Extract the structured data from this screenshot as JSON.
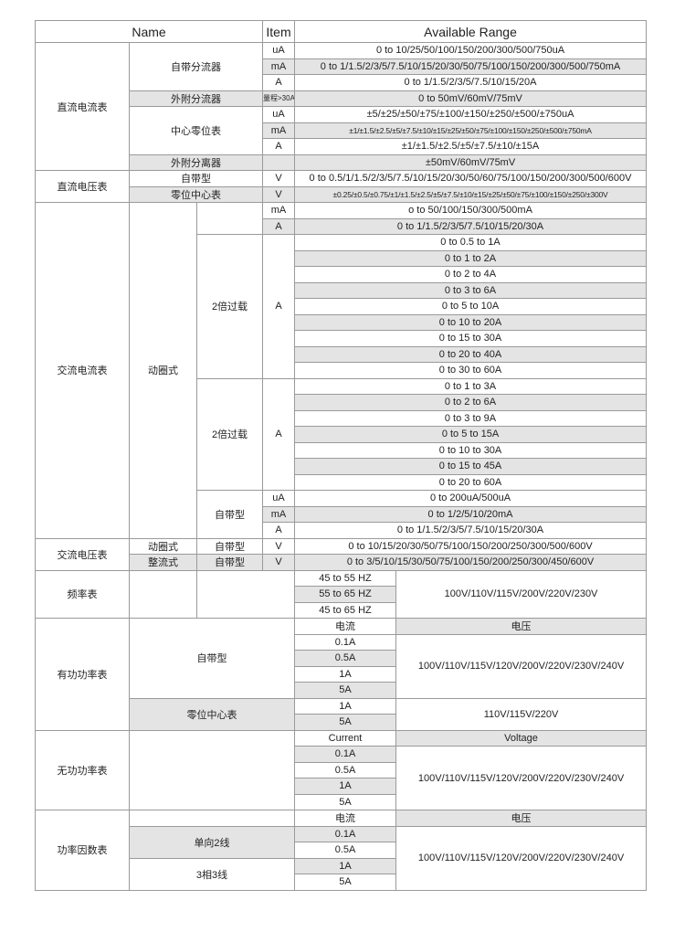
{
  "table": {
    "header": [
      "Name",
      "Item",
      "Available Range"
    ],
    "rows": [
      [
        "直流电流表",
        "自带分流器",
        "uA",
        "0 to 10/25/50/100/150/200/300/500/750uA"
      ],
      [
        "mA",
        "0 to 1/1.5/2/3/5/7.5/10/15/20/30/50/75/100/150/200/300/500/750mA"
      ],
      [
        "A",
        "0 to 1/1.5/2/3/5/7.5/10/15/20A"
      ],
      [
        "外附分流器",
        "量程>30A",
        "0 to 50mV/60mV/75mV"
      ],
      [
        "中心零位表",
        "uA",
        "±5/±25/±50/±75/±100/±150/±250/±500/±750uA"
      ],
      [
        "mA",
        "±1/±1.5/±2.5/±5/±7.5/±10/±15/±25/±50/±75/±100/±150/±250/±500/±750mA"
      ],
      [
        "A",
        "±1/±1.5/±2.5/±5/±7.5/±10/±15A"
      ],
      [
        "外附分离器",
        "±50mV/60mV/75mV"
      ],
      [
        "直流电压表",
        "自带型",
        "V",
        "0 to 0.5/1/1.5/2/3/5/7.5/10/15/20/30/50/60/75/100/150/200/300/500/600V"
      ],
      [
        "零位中心表",
        "V",
        "±0.25/±0.5/±0.75/±1/±1.5/±2.5/±5/±7.5/±10/±15/±25/±50/±75/±100/±150/±250/±300V"
      ],
      [
        "交流电流表",
        "动圈式",
        "mA",
        "o to 50/100/150/300/500mA"
      ],
      [
        "A",
        "0 to 1/1.5/2/3/5/7.5/10/15/20/30A"
      ],
      [
        "2倍过载",
        "A",
        "0 to 0.5 to 1A"
      ],
      [
        "0 to 1 to 2A"
      ],
      [
        "0 to 2 to 4A"
      ],
      [
        "0 to 3 to 6A"
      ],
      [
        "0 to 5 to 10A"
      ],
      [
        "0 to 10 to 20A"
      ],
      [
        "0 to 15 to 30A"
      ],
      [
        "0 to 20 to 40A"
      ],
      [
        "0 to 30 to 60A"
      ],
      [
        "2倍过载",
        "A",
        "0 to 1 to 3A"
      ],
      [
        "0 to 2 to 6A"
      ],
      [
        "0 to 3 to 9A"
      ],
      [
        "0 to 5 to 15A"
      ],
      [
        "0 to 10 to 30A"
      ],
      [
        "0 to 15 to 45A"
      ],
      [
        "0 to 20 to 60A"
      ],
      [
        "自带型",
        "uA",
        "0 to 200uA/500uA"
      ],
      [
        "mA",
        "0 to 1/2/5/10/20mA"
      ],
      [
        "A",
        "0 to 1/1.5/2/3/5/7.5/10/15/20/30A"
      ],
      [
        "交流电压表",
        "动圈式",
        "自带型",
        "V",
        "0 to 10/15/20/30/50/75/100/150/200/250/300/500/600V"
      ],
      [
        "整流式",
        "自带型",
        "V",
        "0 to 3/5/10/15/30/50/75/100/150/200/250/300/450/600V"
      ],
      [
        "频率表",
        "45 to 55 HZ",
        "100V/110V/115V/200V/220V/230V"
      ],
      [
        "55 to 65 HZ"
      ],
      [
        "45 to 65 HZ"
      ],
      [
        "有功功率表",
        "自带型",
        "电流",
        "电压"
      ],
      [
        "0.1A",
        "100V/110V/115V/120V/200V/220V/230V/240V"
      ],
      [
        "0.5A"
      ],
      [
        "1A"
      ],
      [
        "5A"
      ],
      [
        "零位中心表",
        "1A",
        "110V/115V/220V"
      ],
      [
        "5A"
      ],
      [
        "无功功率表",
        "Current",
        "Voltage"
      ],
      [
        "0.1A",
        "100V/110V/115V/120V/200V/220V/230V/240V"
      ],
      [
        "0.5A"
      ],
      [
        "1A"
      ],
      [
        "5A"
      ],
      [
        "功率因数表",
        "电流",
        "电压"
      ],
      [
        "单向2线",
        "0.1A",
        "100V/110V/115V/120V/200V/220V/230V/240V"
      ],
      [
        "0.5A"
      ],
      [
        "3相3线",
        "1A"
      ],
      [
        "5A"
      ]
    ]
  }
}
